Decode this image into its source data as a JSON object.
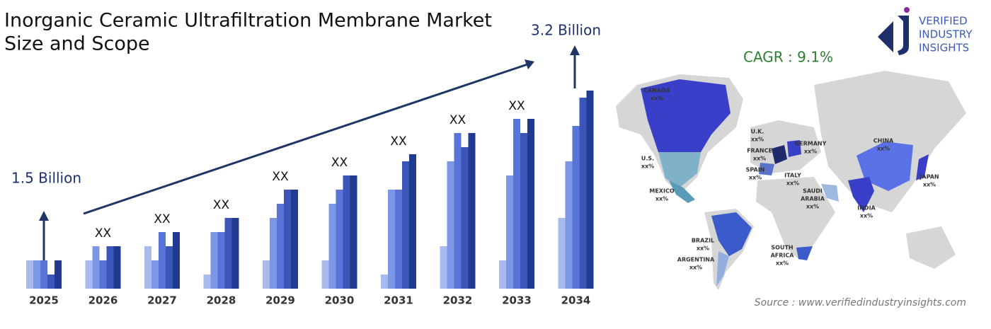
{
  "chart_data": {
    "type": "bar",
    "title": [
      "Inorganic Ceramic Ultrafiltration Membrane Market",
      "Size and Scope"
    ],
    "categories": [
      "2025",
      "2026",
      "2027",
      "2028",
      "2029",
      "2030",
      "2031",
      "2032",
      "2033",
      "2034"
    ],
    "series": [
      {
        "color": "#a9bbee",
        "values": [
          2,
          2,
          3,
          1,
          2,
          2,
          1,
          3,
          2,
          5
        ]
      },
      {
        "color": "#7c97e6",
        "values": [
          2,
          3,
          2,
          4,
          5,
          6,
          7,
          9,
          8,
          9
        ]
      },
      {
        "color": "#5874d6",
        "values": [
          2,
          2,
          4,
          4,
          6,
          7,
          7,
          11,
          12,
          11.5
        ]
      },
      {
        "color": "#3b56b8",
        "values": [
          1,
          3,
          3,
          5,
          7,
          8,
          9,
          10,
          11,
          13.5
        ]
      },
      {
        "color": "#1f3a8f",
        "values": [
          2,
          3,
          4,
          5,
          7,
          8,
          9.5,
          11,
          12,
          14
        ]
      }
    ],
    "value_labels": [
      null,
      "XX",
      "XX",
      "XX",
      "XX",
      "XX",
      "XX",
      "XX",
      "XX",
      null
    ],
    "start_label": "1.5 Billion",
    "end_label": "3.2 Billion",
    "cagr": "CAGR : 9.1%"
  },
  "map": {
    "labels": [
      {
        "lines": [
          "CANADA"
        ],
        "value": "xx%"
      },
      {
        "lines": [
          "U.S."
        ],
        "value": "xx%"
      },
      {
        "lines": [
          "MEXICO"
        ],
        "value": "xx%"
      },
      {
        "lines": [
          "BRAZIL"
        ],
        "value": "xx%"
      },
      {
        "lines": [
          "ARGENTINA"
        ],
        "value": "xx%"
      },
      {
        "lines": [
          "U.K."
        ],
        "value": "xx%"
      },
      {
        "lines": [
          "FRANCE"
        ],
        "value": "xx%"
      },
      {
        "lines": [
          "SPAIN"
        ],
        "value": "xx%"
      },
      {
        "lines": [
          "GERMANY"
        ],
        "value": "xx%"
      },
      {
        "lines": [
          "ITALY"
        ],
        "value": "xx%"
      },
      {
        "lines": [
          "SAUDI",
          "ARABIA"
        ],
        "value": "xx%"
      },
      {
        "lines": [
          "SOUTH",
          "AFRICA"
        ],
        "value": "xx%"
      },
      {
        "lines": [
          "CHINA"
        ],
        "value": "xx%"
      },
      {
        "lines": [
          "INDIA"
        ],
        "value": "xx%"
      },
      {
        "lines": [
          "JAPAN"
        ],
        "value": "xx%"
      }
    ]
  },
  "logo": [
    "VERIFIED",
    "INDUSTRY",
    "INSIGHTS"
  ],
  "source": "Source : www.verifiedindustryinsights.com"
}
